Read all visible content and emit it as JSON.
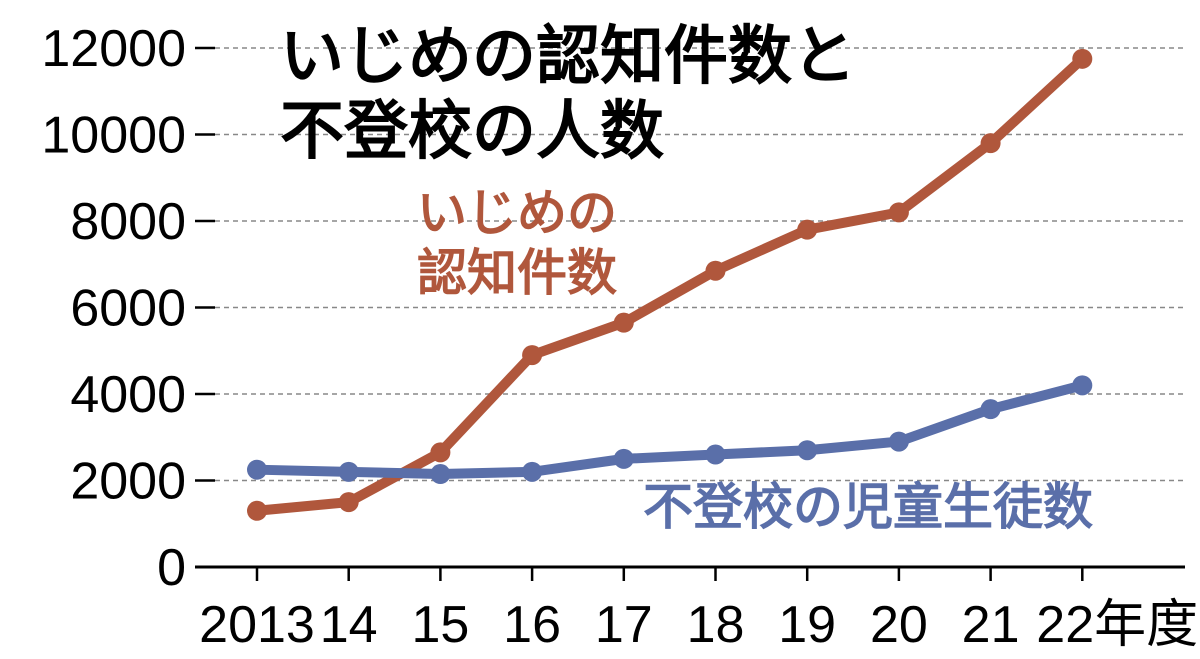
{
  "chart_data": {
    "type": "line",
    "title_lines": [
      "いじめの認知件数と",
      "不登校の人数"
    ],
    "x_labels": [
      "2013",
      "14",
      "15",
      "16",
      "17",
      "18",
      "19",
      "20",
      "21",
      "22年度"
    ],
    "ylim": [
      0,
      12000
    ],
    "yticks": [
      0,
      2000,
      4000,
      6000,
      8000,
      10000,
      12000
    ],
    "grid": true,
    "series": [
      {
        "name_lines": [
          "いじめの",
          "認知件数"
        ],
        "color": "#b0573c",
        "values": [
          1300,
          1500,
          2650,
          4900,
          5650,
          6850,
          7800,
          8200,
          9800,
          11750
        ]
      },
      {
        "name_lines": [
          "不登校の児童生徒数"
        ],
        "color": "#5a6fa9",
        "values": [
          2250,
          2200,
          2150,
          2200,
          2500,
          2600,
          2700,
          2900,
          3650,
          4200
        ]
      }
    ]
  }
}
